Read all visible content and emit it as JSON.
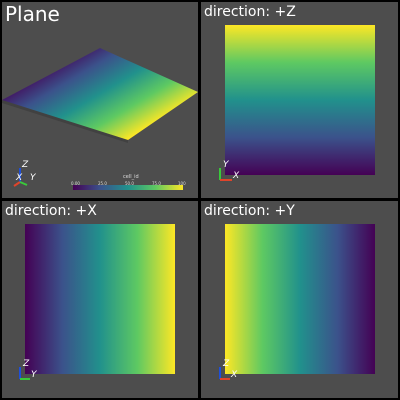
{
  "panels": [
    {
      "title": "Plane"
    },
    {
      "title": "direction: +Z"
    },
    {
      "title": "direction: +X"
    },
    {
      "title": "direction: +Y"
    }
  ],
  "colorbar": {
    "title": "cell_id",
    "ticks": [
      "0.00",
      "25.0",
      "50.0",
      "75.0",
      "100"
    ]
  },
  "axes": {
    "panel1": {
      "up": "Z",
      "left": "X",
      "right": "Y"
    },
    "panel2": {
      "up": "Y",
      "right": "X"
    },
    "panel3": {
      "up": "Z",
      "right": "Y"
    },
    "panel4": {
      "up": "Z",
      "right": "X"
    }
  },
  "colors": {
    "viridis_dark": "#440154",
    "viridis_mid": "#21918c",
    "viridis_light": "#fde725",
    "background": "#4d4d4d",
    "x_axis": "#e0442b",
    "y_axis": "#39c83b",
    "z_axis": "#1f4fd8"
  }
}
